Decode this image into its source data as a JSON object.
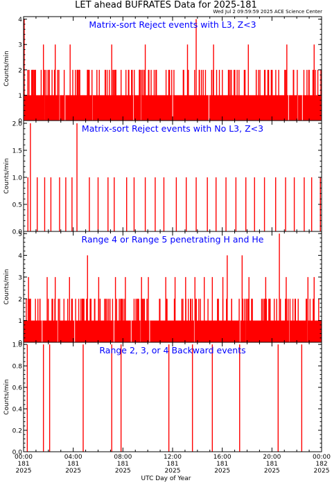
{
  "page": {
    "title": "LET ahead BUFRATES Data for 2025-181",
    "subtitle": "Wed Jul  2 09:59:59 2025 ACE Science Center",
    "xlabel": "UTC Day of Year"
  },
  "colors": {
    "data": "#ff0000",
    "panel_title": "#0000ff",
    "axis": "#000000"
  },
  "x_axis": {
    "range_hours": [
      0,
      24
    ],
    "ticks": [
      {
        "time": "00:00",
        "doy": "181",
        "year": "2025"
      },
      {
        "time": "04:00",
        "doy": "181",
        "year": "2025"
      },
      {
        "time": "08:00",
        "doy": "181",
        "year": "2025"
      },
      {
        "time": "12:00",
        "doy": "181",
        "year": "2025"
      },
      {
        "time": "16:00",
        "doy": "181",
        "year": "2025"
      },
      {
        "time": "20:00",
        "doy": "181",
        "year": "2025"
      },
      {
        "time": "00:00",
        "doy": "182",
        "year": "2025"
      }
    ]
  },
  "chart_data": [
    {
      "type": "bar",
      "title": "Matrix-sort Reject events with L3, Z<3",
      "ylabel": "Counts/min",
      "ylim": [
        0,
        4.1
      ],
      "yticks": [
        "0",
        "1",
        "2",
        "3",
        "4"
      ],
      "ytick_values": [
        0,
        1,
        2,
        3,
        4
      ],
      "series": [
        {
          "x_hours": [
            0.05,
            1.6,
            2.55,
            3.75,
            7.1,
            9.8,
            13.2,
            13.9,
            15.3,
            18.1,
            21.2,
            23.4
          ],
          "values": [
            4,
            3,
            3,
            3,
            3,
            3,
            3,
            4,
            3,
            3,
            3,
            3
          ],
          "baseline": 1,
          "level2_fraction": 0.3
        }
      ]
    },
    {
      "type": "bar",
      "title": "Matrix-sort Reject events with No L3, Z<3",
      "ylabel": "Counts/min",
      "ylim": [
        0,
        2.05
      ],
      "yticks": [
        "0.0",
        "0.5",
        "1.0",
        "1.5",
        "2.0"
      ],
      "ytick_values": [
        0,
        0.5,
        1,
        1.5,
        2
      ],
      "series": [
        {
          "x_hours": [
            0.55,
            4.3
          ],
          "values": [
            2,
            2
          ],
          "one_count_hours": [
            0.35,
            1.1,
            1.7,
            2.2,
            2.9,
            3.4,
            3.9,
            5.3,
            6.0,
            6.8,
            7.3,
            8.3,
            8.9,
            9.8,
            10.6,
            11.3,
            12.3,
            13.1,
            13.9,
            14.8,
            15.5,
            16.3,
            17.1,
            17.9,
            18.6,
            19.4,
            20.3,
            21.1,
            21.8,
            22.6,
            23.2,
            23.9
          ],
          "baseline": 0
        }
      ]
    },
    {
      "type": "bar",
      "title": "Range 4 or Range 5 penetrating H and He",
      "ylabel": "Counts/min",
      "ylim": [
        0,
        5.1
      ],
      "yticks": [
        "0",
        "1",
        "2",
        "3",
        "4",
        "5"
      ],
      "ytick_values": [
        0,
        1,
        2,
        3,
        4,
        5
      ],
      "series": [
        {
          "x_hours": [
            5.15,
            16.4,
            17.6,
            20.6
          ],
          "values": [
            4,
            4,
            4,
            5
          ],
          "three_count_hours": [
            0.4,
            1.9,
            2.55,
            3.7,
            6.05,
            7.4,
            8.2,
            9.5,
            10.05,
            11.45,
            12.2,
            13.05,
            13.8,
            14.55,
            15.2,
            16.05,
            18.15,
            19.5,
            21.15,
            22.9,
            23.4
          ],
          "baseline": 1,
          "level2_fraction": 0.3
        }
      ]
    },
    {
      "type": "bar",
      "title": "Range 2, 3, or 4 Backward events",
      "ylabel": "Counts/min",
      "ylim": [
        0,
        1.02
      ],
      "yticks": [
        "0.0",
        "0.2",
        "0.4",
        "0.6",
        "0.8",
        "1.0"
      ],
      "ytick_values": [
        0,
        0.2,
        0.4,
        0.6,
        0.8,
        1.0
      ],
      "series": [
        {
          "x_hours": [
            0.3,
            1.6,
            2.1,
            4.8,
            7.1,
            7.85,
            11.7,
            13.6,
            15.2,
            17.4,
            20.5,
            22.4
          ],
          "values": [
            1,
            1,
            1,
            1,
            1,
            1,
            1,
            1,
            1,
            1,
            1,
            1
          ],
          "baseline": 0
        }
      ]
    }
  ]
}
